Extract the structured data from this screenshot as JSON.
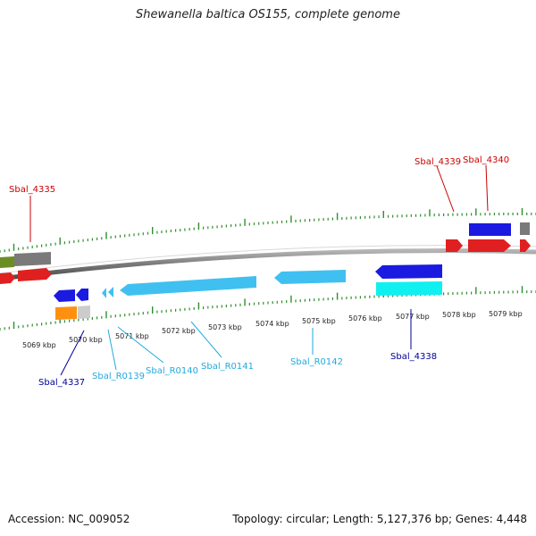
{
  "title": "Shewanella baltica OS155, complete genome",
  "footer": {
    "accession": "Accession: NC_009052",
    "topology": "Topology: circular; Length: 5,127,376 bp; Genes: 4,448"
  },
  "colors": {
    "backbone": "#8a8a8a",
    "tick": "#2f8f2f",
    "red": "#e02020",
    "blue": "#1a1ae0",
    "light_blue": "#40c0f0",
    "cyan": "#10f0f0",
    "gray": "#7a7a7a",
    "olive": "#6b8e23",
    "orange": "#ff9010",
    "light_gray": "#cccccc",
    "label_red": "#cc0000",
    "label_navy": "#000099",
    "label_cyan": "#22aadd"
  },
  "kbp_labels": [
    "5069 kbp",
    "5070 kbp",
    "5071 kbp",
    "5072 kbp",
    "5073 kbp",
    "5074 kbp",
    "5075 kbp",
    "5076 kbp",
    "5077 kbp",
    "5078 kbp",
    "5079 kbp"
  ],
  "gene_labels": {
    "sbal_4335": "Sbal_4335",
    "sbal_4339": "Sbal_4339",
    "sbal_4340": "Sbal_4340",
    "sbal_4337": "Sbal_4337",
    "sbal_r0139": "Sbal_R0139",
    "sbal_r0140": "Sbal_R0140",
    "sbal_r0141": "Sbal_R0141",
    "sbal_r0142": "Sbal_R0142",
    "sbal_4338": "Sbal_4338"
  }
}
